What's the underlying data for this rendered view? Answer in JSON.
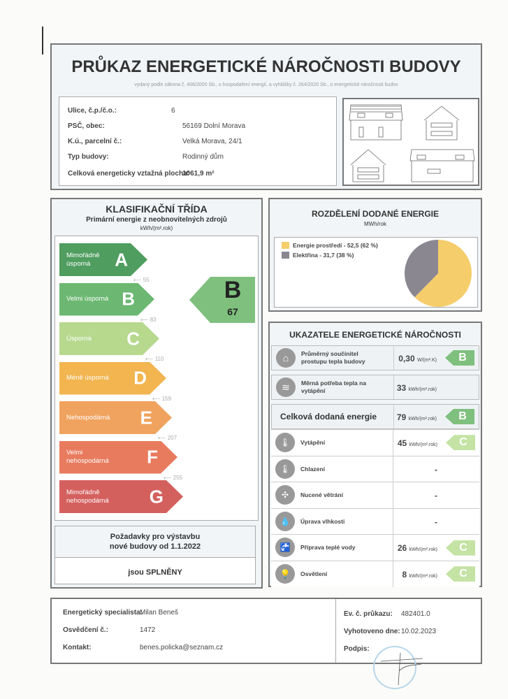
{
  "header": {
    "title": "PRŮKAZ ENERGETICKÉ NÁROČNOSTI BUDOVY",
    "subtitle": "vydaný podle zákona č. 406/2000 Sb., o hospodaření energií, a vyhlášky č. 264/2020 Sb., o energetické náročnosti budov"
  },
  "building": {
    "fields": [
      {
        "label": "Ulice, č.p./č.o.:",
        "value": "6"
      },
      {
        "label": "PSČ, obec:",
        "value": "56169 Dolní Morava"
      },
      {
        "label": "K.ú., parcelní č.:",
        "value": "Velká Morava, 24/1"
      },
      {
        "label": "Typ budovy:",
        "value": "Rodinný dům"
      }
    ],
    "area_label": "Celková energeticky vztažná plocha:",
    "area_value": "1061,9 m²"
  },
  "classification": {
    "title": "KLASIFIKAČNÍ TŘÍDA",
    "subtitle": "Primární energie z neobnovitelných zdrojů",
    "unit": "kWh/(m².rok)",
    "classes": [
      {
        "letter": "A",
        "label": "Mimořádně úsporná",
        "color": "#4f9d5f"
      },
      {
        "letter": "B",
        "label": "Velmi úsporná",
        "color": "#6cb872"
      },
      {
        "letter": "C",
        "label": "Úsporná",
        "color": "#b6d98e"
      },
      {
        "letter": "D",
        "label": "Méně úsporná",
        "color": "#f2b550"
      },
      {
        "letter": "E",
        "label": "Nehospodárná",
        "color": "#f0a35f"
      },
      {
        "letter": "F",
        "label": "Velmi nehospodárná",
        "color": "#e87b5e"
      },
      {
        "letter": "G",
        "label": "Mimořádně nehospodárná",
        "color": "#d4605e"
      }
    ],
    "thresholds": [
      "55",
      "83",
      "110",
      "159",
      "207",
      "255"
    ],
    "result": {
      "letter": "B",
      "value": "67",
      "color": "#7fc07e"
    },
    "requirements": {
      "line1": "Požadavky pro výstavbu",
      "line2": "nové budovy od 1.1.2022",
      "result": "jsou SPLNĚNY"
    }
  },
  "distribution": {
    "title": "ROZDĚLENÍ DODANÉ ENERGIE",
    "unit": "MWh/rok",
    "chart_data": {
      "type": "pie",
      "series": [
        {
          "name": "Energie prostředí - 52,5 (62 %)",
          "value": 52.5,
          "percent": 62,
          "color": "#f5cd6b"
        },
        {
          "name": "Elektřina - 31,7 (38 %)",
          "value": 31.7,
          "percent": 38,
          "color": "#8a8790"
        }
      ],
      "legend": "left"
    }
  },
  "indicators": {
    "title": "UKAZATELE ENERGETICKÉ NÁROČNOSTI",
    "top": [
      {
        "icon": "house-icon",
        "label": "Průměrný součinitel prostupu tepla budovy",
        "value": "0,30",
        "unit": "W/(m².K)",
        "class": "B"
      },
      {
        "icon": "heat-demand-icon",
        "label": "Měrná potřeba tepla na vytápění",
        "value": "33",
        "unit": "kWh/(m².rok)",
        "class": ""
      }
    ],
    "total": {
      "label": "Celková dodaná energie",
      "value": "79",
      "unit": "kWh/(m².rok)",
      "class": "B"
    },
    "items": [
      {
        "icon": "thermometer-heating-icon",
        "glyph": "🌡",
        "label": "Vytápění",
        "value": "45",
        "unit": "kWh/(m².rok)",
        "class": "C"
      },
      {
        "icon": "thermometer-cooling-icon",
        "glyph": "🌡",
        "label": "Chlazení",
        "value": "-",
        "unit": "",
        "class": ""
      },
      {
        "icon": "fan-icon",
        "glyph": "✣",
        "label": "Nucené větrání",
        "value": "-",
        "unit": "",
        "class": ""
      },
      {
        "icon": "humidity-icon",
        "glyph": "💧",
        "label": "Úprava vlhkosti",
        "value": "-",
        "unit": "",
        "class": ""
      },
      {
        "icon": "faucet-icon",
        "glyph": "🚰",
        "label": "Příprava teplé vody",
        "value": "26",
        "unit": "kWh/(m².rok)",
        "class": "C"
      },
      {
        "icon": "light-bulb-icon",
        "glyph": "💡",
        "label": "Osvětlení",
        "value": "8",
        "unit": "kWh/(m².rok)",
        "class": "C"
      }
    ],
    "class_colors": {
      "B": "#7fc07e",
      "C": "#c4e3a4"
    }
  },
  "footer": {
    "left": [
      {
        "label": "Energetický specialista:",
        "value": "Milan Beneš"
      },
      {
        "label": "Osvědčení č.:",
        "value": "1472"
      },
      {
        "label": "Kontakt:",
        "value": "benes.policka@seznam.cz"
      }
    ],
    "right": [
      {
        "label": "Ev. č. průkazu:",
        "value": "482401.0"
      },
      {
        "label": "Vyhotoveno dne:",
        "value": "10.02.2023"
      },
      {
        "label": "Podpis:",
        "value": ""
      }
    ]
  }
}
